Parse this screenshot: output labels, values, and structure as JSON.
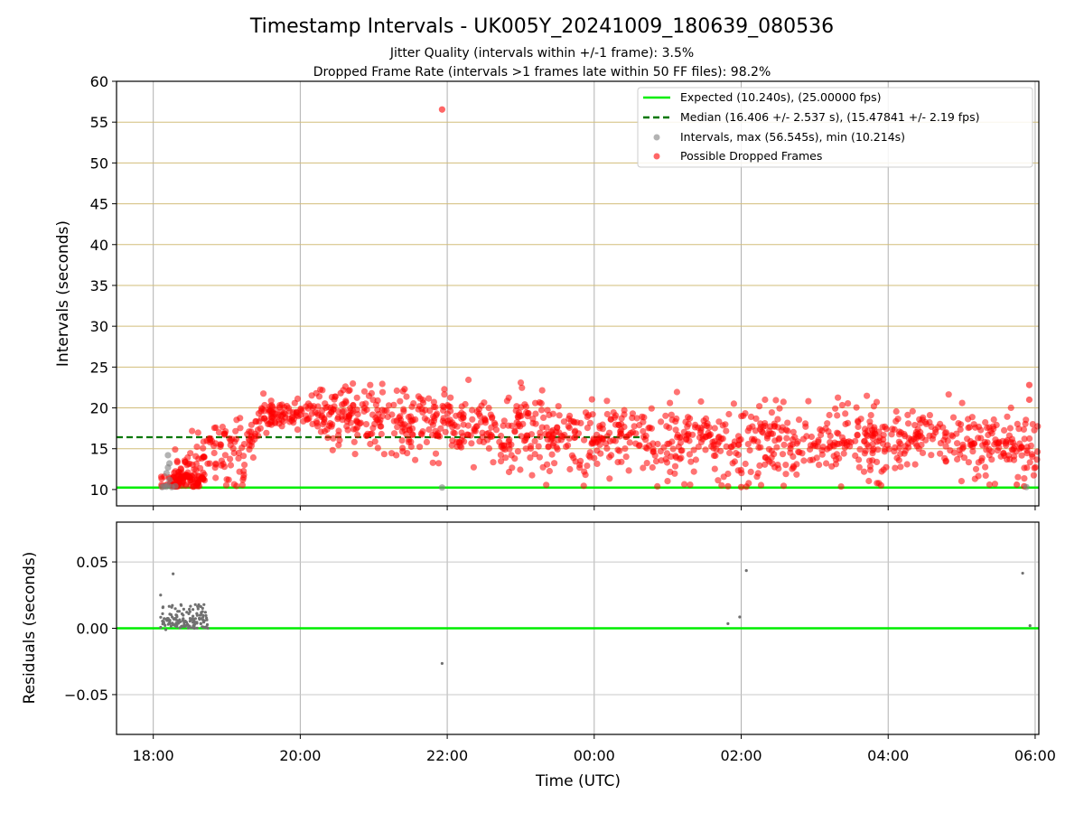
{
  "chart_data": {
    "type": "scatter",
    "title": "Timestamp Intervals - UK005Y_20241009_180639_080536",
    "subtitle_lines": [
      "Jitter Quality (intervals within +/-1 frame): 3.5%",
      "Dropped Frame Rate (intervals >1 frames late within 50 FF files): 98.2%"
    ],
    "xlabel": "Time (UTC)",
    "x_ticks": [
      "18:00",
      "20:00",
      "22:00",
      "00:00",
      "02:00",
      "04:00",
      "06:00"
    ],
    "x_range_hours": [
      17.5,
      30.05
    ],
    "panels": [
      {
        "name": "intervals",
        "ylabel": "Intervals (seconds)",
        "ylim": [
          8,
          60
        ],
        "yticks": [
          10,
          15,
          20,
          25,
          30,
          35,
          40,
          45,
          50,
          55,
          60
        ],
        "grid": true,
        "legend_position": "upper right",
        "legend": [
          {
            "label": "Expected (10.240s), (25.00000 fps)",
            "kind": "solid-line",
            "color": "#00ee00"
          },
          {
            "label": "Median (16.406 +/- 2.537 s), (15.47841 +/- 2.19 fps)",
            "kind": "dashed-line",
            "color": "#007700"
          },
          {
            "label": "Intervals, max (56.545s), min (10.214s)",
            "kind": "dot",
            "color": "#808080"
          },
          {
            "label": "Possible Dropped Frames",
            "kind": "dot",
            "color": "#ff0000"
          }
        ],
        "expected_line": 10.24,
        "median_line": {
          "y": 16.406,
          "x_start": 17.5,
          "x_end": 24.7
        },
        "profile_hours": [
          18.1,
          18.25,
          18.4,
          18.55,
          18.7,
          18.9,
          19.2,
          19.45,
          19.7,
          20.0,
          20.4,
          20.9,
          21.5,
          22.0,
          22.5,
          23.0,
          23.5,
          24.0,
          24.5,
          25.0,
          25.5,
          26.0,
          26.5,
          27.0,
          27.5,
          28.0,
          28.5,
          29.0,
          29.5,
          30.05
        ],
        "profile_center": [
          10.8,
          11.5,
          12.0,
          13.0,
          14.5,
          15.0,
          14.5,
          19.0,
          19.2,
          19.5,
          19.3,
          18.5,
          18.0,
          18.0,
          17.5,
          17.0,
          16.5,
          16.5,
          17.0,
          16.0,
          15.8,
          15.5,
          16.0,
          16.0,
          16.5,
          16.0,
          16.0,
          15.5,
          15.5,
          15.0
        ],
        "profile_spread": [
          0.6,
          1.2,
          1.5,
          1.8,
          2.0,
          2.0,
          2.2,
          1.0,
          0.8,
          0.8,
          1.5,
          2.0,
          2.3,
          2.2,
          2.3,
          2.3,
          2.3,
          2.2,
          2.2,
          2.2,
          2.2,
          2.3,
          2.2,
          2.0,
          2.0,
          2.0,
          2.0,
          2.0,
          2.0,
          2.2
        ],
        "dropped_count": 1400,
        "outliers_dropped": [
          {
            "x": 21.93,
            "y": 56.545
          },
          {
            "x": 29.92,
            "y": 22.8
          },
          {
            "x": 29.92,
            "y": 21.0
          },
          {
            "x": 29.85,
            "y": 10.4
          },
          {
            "x": 29.75,
            "y": 10.6
          },
          {
            "x": 25.82,
            "y": 10.4
          },
          {
            "x": 26.0,
            "y": 10.3
          },
          {
            "x": 26.07,
            "y": 10.35
          },
          {
            "x": 20.55,
            "y": 21.8
          },
          {
            "x": 21.42,
            "y": 22.3
          }
        ],
        "normal_intervals": [
          {
            "x": 18.12,
            "y": 10.3
          },
          {
            "x": 18.15,
            "y": 10.4
          },
          {
            "x": 18.18,
            "y": 10.35
          },
          {
            "x": 18.2,
            "y": 10.5
          },
          {
            "x": 18.22,
            "y": 11.2
          },
          {
            "x": 18.18,
            "y": 12.0
          },
          {
            "x": 18.2,
            "y": 12.7
          },
          {
            "x": 18.22,
            "y": 13.2
          },
          {
            "x": 18.2,
            "y": 14.2
          },
          {
            "x": 18.25,
            "y": 10.3
          },
          {
            "x": 18.3,
            "y": 10.4
          },
          {
            "x": 21.93,
            "y": 10.25
          },
          {
            "x": 29.88,
            "y": 10.3
          }
        ]
      },
      {
        "name": "residuals",
        "ylabel": "Residuals (seconds)",
        "ylim": [
          -0.08,
          0.08
        ],
        "yticks": [
          -0.05,
          0.0,
          0.05
        ],
        "ytick_labels": [
          "−0.05",
          "0.00",
          "0.05"
        ],
        "grid": true,
        "zero_line_color": "#00ee00",
        "cluster": {
          "x_range": [
            18.1,
            18.75
          ],
          "y_range": [
            0.0,
            0.018
          ],
          "count": 140
        },
        "points": [
          {
            "x": 18.1,
            "y": 0.025
          },
          {
            "x": 18.27,
            "y": 0.041
          },
          {
            "x": 21.93,
            "y": -0.0265
          },
          {
            "x": 25.82,
            "y": 0.0035
          },
          {
            "x": 25.98,
            "y": 0.0085
          },
          {
            "x": 26.07,
            "y": 0.0435
          },
          {
            "x": 29.83,
            "y": 0.0415
          },
          {
            "x": 29.93,
            "y": 0.002
          },
          {
            "x": 18.17,
            "y": -0.001
          },
          {
            "x": 18.72,
            "y": 0.001
          }
        ]
      }
    ]
  }
}
